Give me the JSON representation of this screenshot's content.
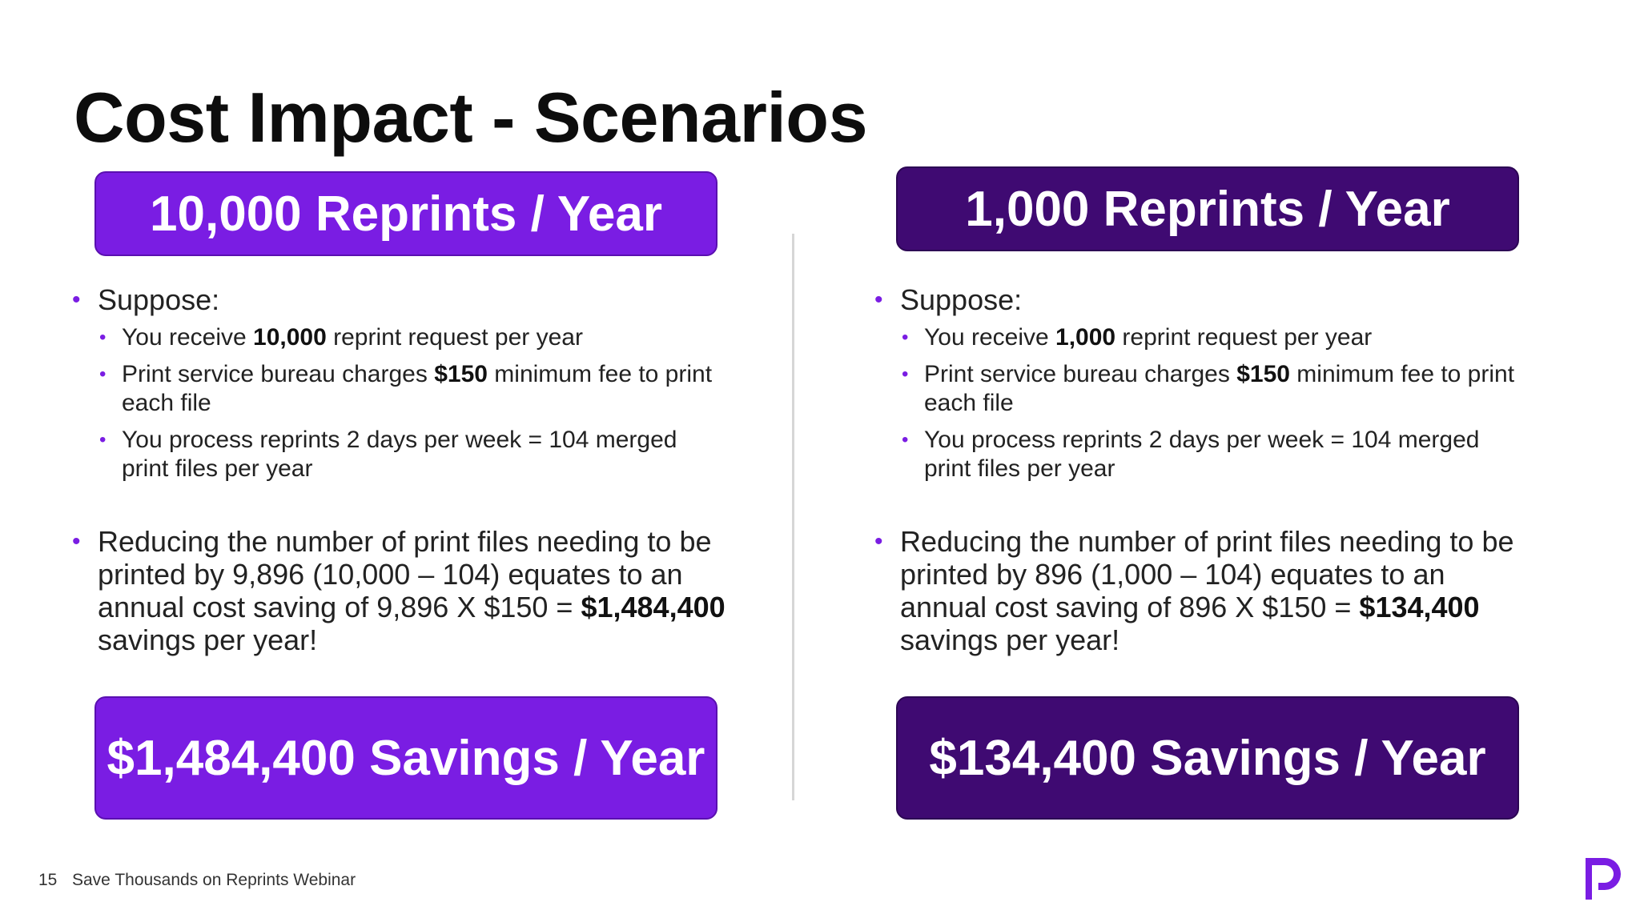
{
  "slide": {
    "title": "Cost Impact - Scenarios",
    "page_number": "15",
    "footer_text": "Save Thousands on Reprints Webinar"
  },
  "colors": {
    "accent_bright": "#7a1de3",
    "accent_dark": "#3f0a72"
  },
  "icons": {
    "logo": "p-logo-icon"
  },
  "left": {
    "header": "10,000 Reprints / Year",
    "suppose": "Suppose:",
    "sub1_pre": "You receive ",
    "sub1_bold": "10,000",
    "sub1_post": " reprint request per year",
    "sub2_pre": "Print service bureau charges ",
    "sub2_bold": "$150",
    "sub2_post": " minimum fee to print each file",
    "sub3": "You process reprints 2 days per week = 104 merged print files per year",
    "reduce_pre": "Reducing the number of print files needing to be printed by 9,896 (10,000 – 104) equates to an annual cost saving of 9,896 X $150 = ",
    "reduce_bold": "$1,484,400",
    "reduce_post": " savings per year!",
    "footer_banner": "$1,484,400 Savings / Year"
  },
  "right": {
    "header": "1,000 Reprints / Year",
    "suppose": "Suppose:",
    "sub1_pre": "You receive ",
    "sub1_bold": "1,000",
    "sub1_post": " reprint request per year",
    "sub2_pre": "Print service bureau charges ",
    "sub2_bold": "$150",
    "sub2_post": " minimum fee to print each file",
    "sub3": "You process reprints 2 days per week = 104 merged print files per year",
    "reduce_pre": "Reducing the number of print files needing to be printed by 896 (1,000 – 104) equates to an annual cost saving of 896 X $150 = ",
    "reduce_bold": "$134,400",
    "reduce_post": " savings per year!",
    "footer_banner": "$134,400 Savings / Year"
  }
}
